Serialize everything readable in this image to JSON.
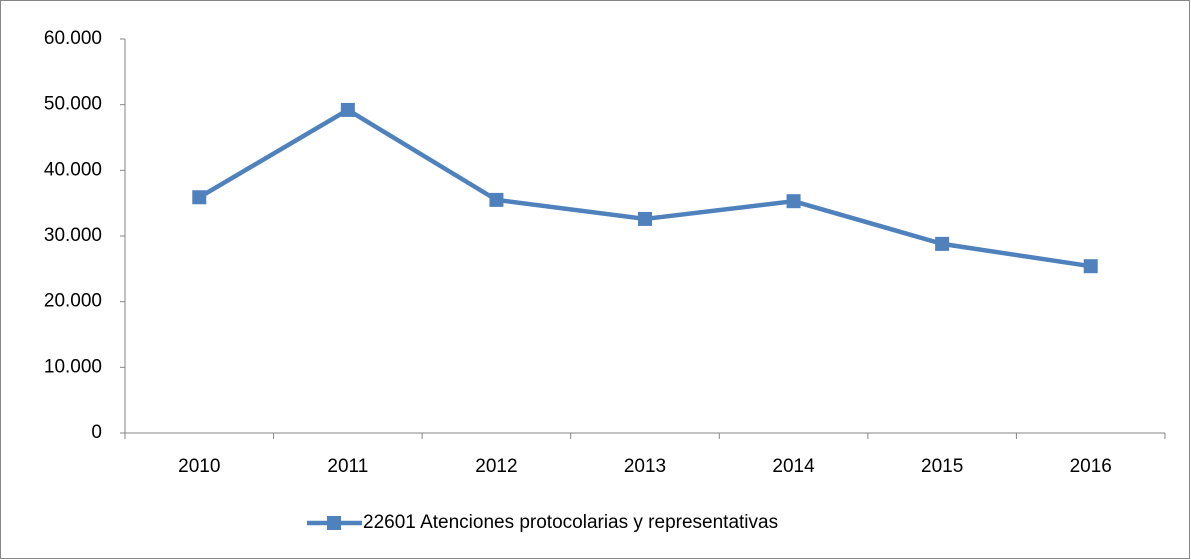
{
  "chart_data": {
    "type": "line",
    "categories": [
      "2010",
      "2011",
      "2012",
      "2013",
      "2014",
      "2015",
      "2016"
    ],
    "series": [
      {
        "name": "22601 Atenciones protocolarias y representativas",
        "color": "#4f81bd",
        "values": [
          35900,
          49200,
          35500,
          32600,
          35300,
          28800,
          25400
        ]
      }
    ],
    "ylim": [
      0,
      60000
    ],
    "yticks": [
      0,
      {
        "value": 10000,
        "label": "10.000"
      },
      {
        "value": 20000,
        "label": "20.000"
      },
      {
        "value": 30000,
        "label": "30.000"
      },
      {
        "value": 40000,
        "label": "40.000"
      },
      {
        "value": 50000,
        "label": "50.000"
      },
      {
        "value": 60000,
        "label": "60.000"
      }
    ],
    "grid": false,
    "legend": "bottom"
  }
}
